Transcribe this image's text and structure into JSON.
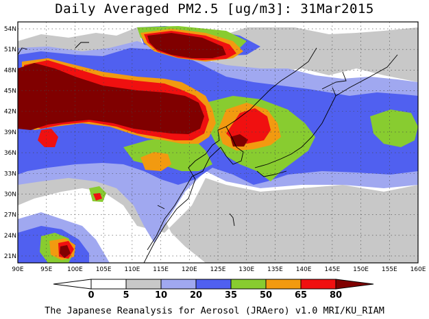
{
  "title": "Daily Averaged PM2.5 [ug/m3]: 31Mar2015",
  "footer": "The Japanese Reanalysis for Aerosol (JRAero) v1.0 MRI/KU_RIAM",
  "map": {
    "lon_range": [
      90,
      160
    ],
    "lat_range": [
      20,
      55
    ],
    "lon_ticks": [
      "90E",
      "95E",
      "100E",
      "105E",
      "110E",
      "115E",
      "120E",
      "125E",
      "130E",
      "135E",
      "140E",
      "145E",
      "150E",
      "155E",
      "160E"
    ],
    "lat_ticks": [
      "54N",
      "51N",
      "48N",
      "45N",
      "42N",
      "39N",
      "36N",
      "33N",
      "30N",
      "27N",
      "24N",
      "21N"
    ]
  },
  "colorbar": {
    "levels": [
      "0",
      "5",
      "10",
      "20",
      "35",
      "50",
      "65",
      "80"
    ],
    "colors": {
      "below_0": "#ffffff",
      "0_5": "#ffffff",
      "5_10": "#c8c8c8",
      "10_20": "#a0a8f0",
      "20_35": "#5060f0",
      "35_50": "#88cc30",
      "50_65": "#f29a10",
      "65_80": "#f01010",
      "above_80": "#800000"
    }
  }
}
